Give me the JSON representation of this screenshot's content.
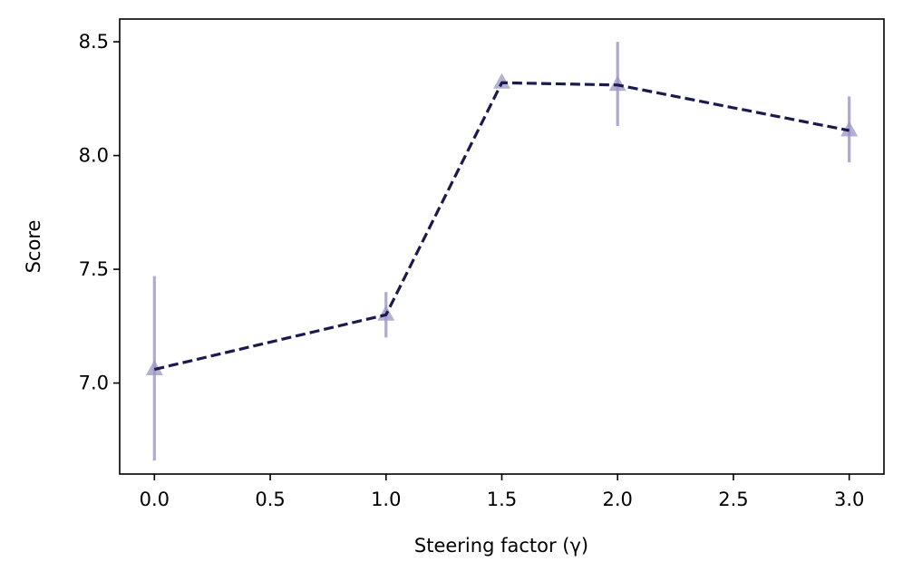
{
  "chart_data": {
    "type": "line",
    "title": "",
    "xlabel": "Steering factor (γ)",
    "ylabel": "Score",
    "xlim": [
      -0.15,
      3.15
    ],
    "ylim": [
      6.6,
      8.6
    ],
    "grid": false,
    "legend": "none",
    "x_ticks": [
      0.0,
      0.5,
      1.0,
      1.5,
      2.0,
      2.5,
      3.0
    ],
    "x_tick_labels": [
      "0.0",
      "0.5",
      "1.0",
      "1.5",
      "2.0",
      "2.5",
      "3.0"
    ],
    "y_ticks": [
      7.0,
      7.5,
      8.0,
      8.5
    ],
    "y_tick_labels": [
      "7.0",
      "7.5",
      "8.0",
      "8.5"
    ],
    "series": [
      {
        "name": "Score",
        "line_style": "dashed",
        "line_color": "#1b1a4f",
        "marker": "triangle",
        "marker_color": "#9b95c6",
        "errorbar_color": "#9b95c6",
        "x": [
          0.0,
          1.0,
          1.5,
          2.0,
          3.0
        ],
        "y": [
          7.06,
          7.3,
          8.32,
          8.31,
          8.11
        ],
        "y_err_low": [
          6.66,
          7.2,
          8.32,
          8.13,
          7.97
        ],
        "y_err_high": [
          7.47,
          7.4,
          8.32,
          8.5,
          8.26
        ]
      }
    ]
  }
}
